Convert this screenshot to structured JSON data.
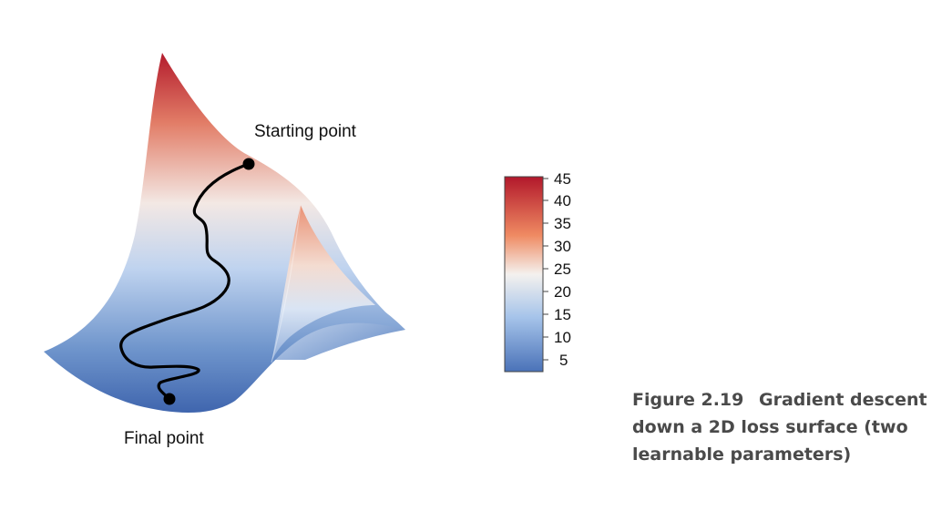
{
  "annotations": {
    "start_label": "Starting point",
    "final_label": "Final point"
  },
  "colorbar": {
    "ticks": [
      "45",
      "40",
      "35",
      "30",
      "25",
      "20",
      "15",
      "10",
      "5"
    ],
    "colors": {
      "high": "#b2182b",
      "mid_high": "#ef8a62",
      "mid": "#f4f1ee",
      "mid_low": "#a6c4ea",
      "low": "#4a72b8"
    }
  },
  "caption": {
    "figure_number": "Figure 2.19",
    "text": "Gradient descent down a 2D loss surface (two learnable parameters)"
  },
  "colors": {
    "path": "#000000",
    "caption_text": "#4a4a4a"
  }
}
